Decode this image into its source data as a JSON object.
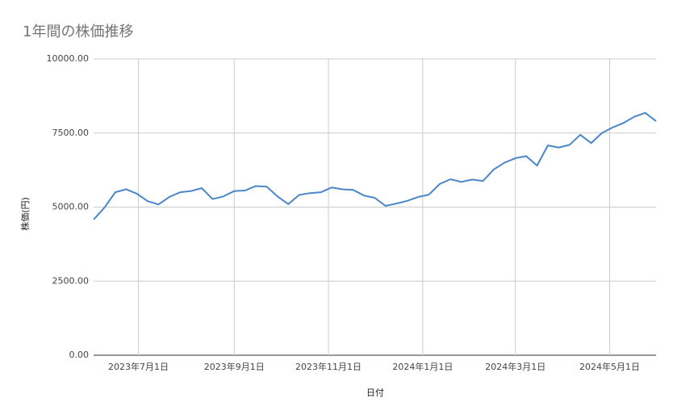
{
  "chart_data": {
    "type": "line",
    "title": "1年間の株価推移",
    "x_label": "日付",
    "y_label": "株価(円)",
    "x": [
      "2023-06-02",
      "2023-06-09",
      "2023-06-16",
      "2023-06-23",
      "2023-06-30",
      "2023-07-07",
      "2023-07-14",
      "2023-07-21",
      "2023-07-28",
      "2023-08-04",
      "2023-08-11",
      "2023-08-18",
      "2023-08-25",
      "2023-09-01",
      "2023-09-08",
      "2023-09-15",
      "2023-09-22",
      "2023-09-29",
      "2023-10-06",
      "2023-10-13",
      "2023-10-20",
      "2023-10-27",
      "2023-11-03",
      "2023-11-10",
      "2023-11-17",
      "2023-11-24",
      "2023-12-01",
      "2023-12-08",
      "2023-12-15",
      "2023-12-22",
      "2023-12-29",
      "2024-01-05",
      "2024-01-12",
      "2024-01-19",
      "2024-01-26",
      "2024-02-02",
      "2024-02-09",
      "2024-02-16",
      "2024-02-23",
      "2024-03-01",
      "2024-03-08",
      "2024-03-15",
      "2024-03-22",
      "2024-03-29",
      "2024-04-05",
      "2024-04-12",
      "2024-04-19",
      "2024-04-26",
      "2024-05-03",
      "2024-05-10",
      "2024-05-17",
      "2024-05-24",
      "2024-05-31"
    ],
    "series": [
      {
        "name": "株価",
        "color": "#4a86c8",
        "values": [
          4580,
          4980,
          5500,
          5600,
          5450,
          5200,
          5090,
          5340,
          5500,
          5540,
          5640,
          5270,
          5360,
          5540,
          5560,
          5710,
          5690,
          5360,
          5100,
          5410,
          5470,
          5500,
          5660,
          5600,
          5580,
          5390,
          5310,
          5040,
          5120,
          5210,
          5340,
          5420,
          5780,
          5940,
          5850,
          5930,
          5880,
          6270,
          6500,
          6650,
          6720,
          6400,
          7080,
          7010,
          7100,
          7440,
          7160,
          7500,
          7690,
          7840,
          8050,
          8180,
          7900
        ]
      }
    ],
    "xlim": [
      "2023-06-02",
      "2024-05-31"
    ],
    "xticks": [
      {
        "value": "2023-07-01",
        "label": "2023年7月1日"
      },
      {
        "value": "2023-09-01",
        "label": "2023年9月1日"
      },
      {
        "value": "2023-11-01",
        "label": "2023年11月1日"
      },
      {
        "value": "2024-01-01",
        "label": "2024年1月1日"
      },
      {
        "value": "2024-03-01",
        "label": "2024年3月1日"
      },
      {
        "value": "2024-05-01",
        "label": "2024年5月1日"
      }
    ],
    "ylim": [
      0,
      10000
    ],
    "yticks": [
      {
        "value": 0,
        "label": "0.00"
      },
      {
        "value": 2500,
        "label": "2500.00"
      },
      {
        "value": 5000,
        "label": "5000.00"
      },
      {
        "value": 7500,
        "label": "7500.00"
      },
      {
        "value": 10000,
        "label": "10000.00"
      }
    ],
    "grid": true
  }
}
